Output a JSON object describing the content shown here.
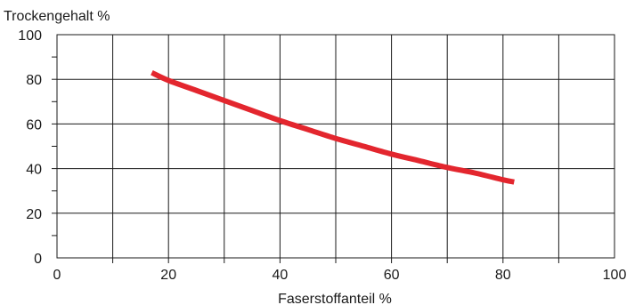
{
  "chart_data": {
    "type": "line",
    "title": "",
    "xlabel": "Faserstoffanteil %",
    "ylabel": "Trockengehalt %",
    "xlim": [
      0,
      100
    ],
    "ylim": [
      0,
      100
    ],
    "x_ticks": [
      0,
      20,
      40,
      60,
      80,
      100
    ],
    "y_ticks": [
      0,
      20,
      40,
      60,
      80,
      100
    ],
    "x_tick_labels": [
      "0",
      "20",
      "40",
      "60",
      "80",
      "100"
    ],
    "y_tick_labels": [
      "0",
      "20",
      "40",
      "60",
      "80",
      "100"
    ],
    "grid": true,
    "legend": "none",
    "series": [
      {
        "color": "#e3262e",
        "x": [
          17,
          20,
          25,
          30,
          35,
          40,
          45,
          50,
          55,
          60,
          65,
          70,
          75,
          80,
          82
        ],
        "y": [
          83,
          79.5,
          75,
          70.5,
          66,
          61.5,
          57.5,
          53.5,
          50,
          46.5,
          43.5,
          40.5,
          38,
          35,
          34
        ]
      }
    ]
  }
}
